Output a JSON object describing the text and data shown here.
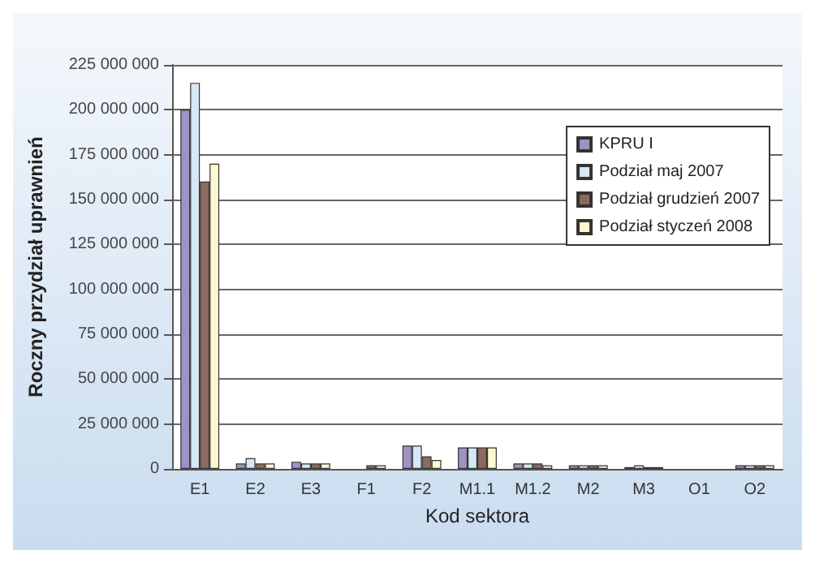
{
  "chart_data": {
    "type": "bar",
    "xlabel": "Kod sektora",
    "ylabel": "Roczny przydział uprawnień",
    "categories": [
      "E1",
      "E2",
      "E3",
      "F1",
      "F2",
      "M1.1",
      "M1.2",
      "M2",
      "M3",
      "O1",
      "O2"
    ],
    "series": [
      {
        "name": "KPRU I",
        "color": "#9f93c4",
        "values": [
          200000000,
          3000000,
          4000000,
          0,
          13000000,
          12000000,
          3000000,
          2000000,
          1000000,
          0,
          2000000
        ]
      },
      {
        "name": "Podział maj 2007",
        "color": "#d6e8f5",
        "values": [
          215000000,
          6000000,
          3000000,
          0,
          13000000,
          12000000,
          3000000,
          2000000,
          2000000,
          0,
          2000000
        ]
      },
      {
        "name": "Podział grudzień 2007",
        "color": "#8c6a60",
        "values": [
          160000000,
          3000000,
          3000000,
          2000000,
          7000000,
          12000000,
          3000000,
          2000000,
          1000000,
          0,
          2000000
        ]
      },
      {
        "name": "Podział styczeń 2008",
        "color": "#fdf8d0",
        "values": [
          170000000,
          3000000,
          3000000,
          2000000,
          5000000,
          12000000,
          2000000,
          2000000,
          1000000,
          0,
          2000000
        ]
      }
    ],
    "ylim": [
      0,
      225000000
    ],
    "yticks": [
      0,
      25000000,
      50000000,
      75000000,
      100000000,
      125000000,
      150000000,
      175000000,
      200000000,
      225000000
    ],
    "grid": "y",
    "legend": "right"
  }
}
